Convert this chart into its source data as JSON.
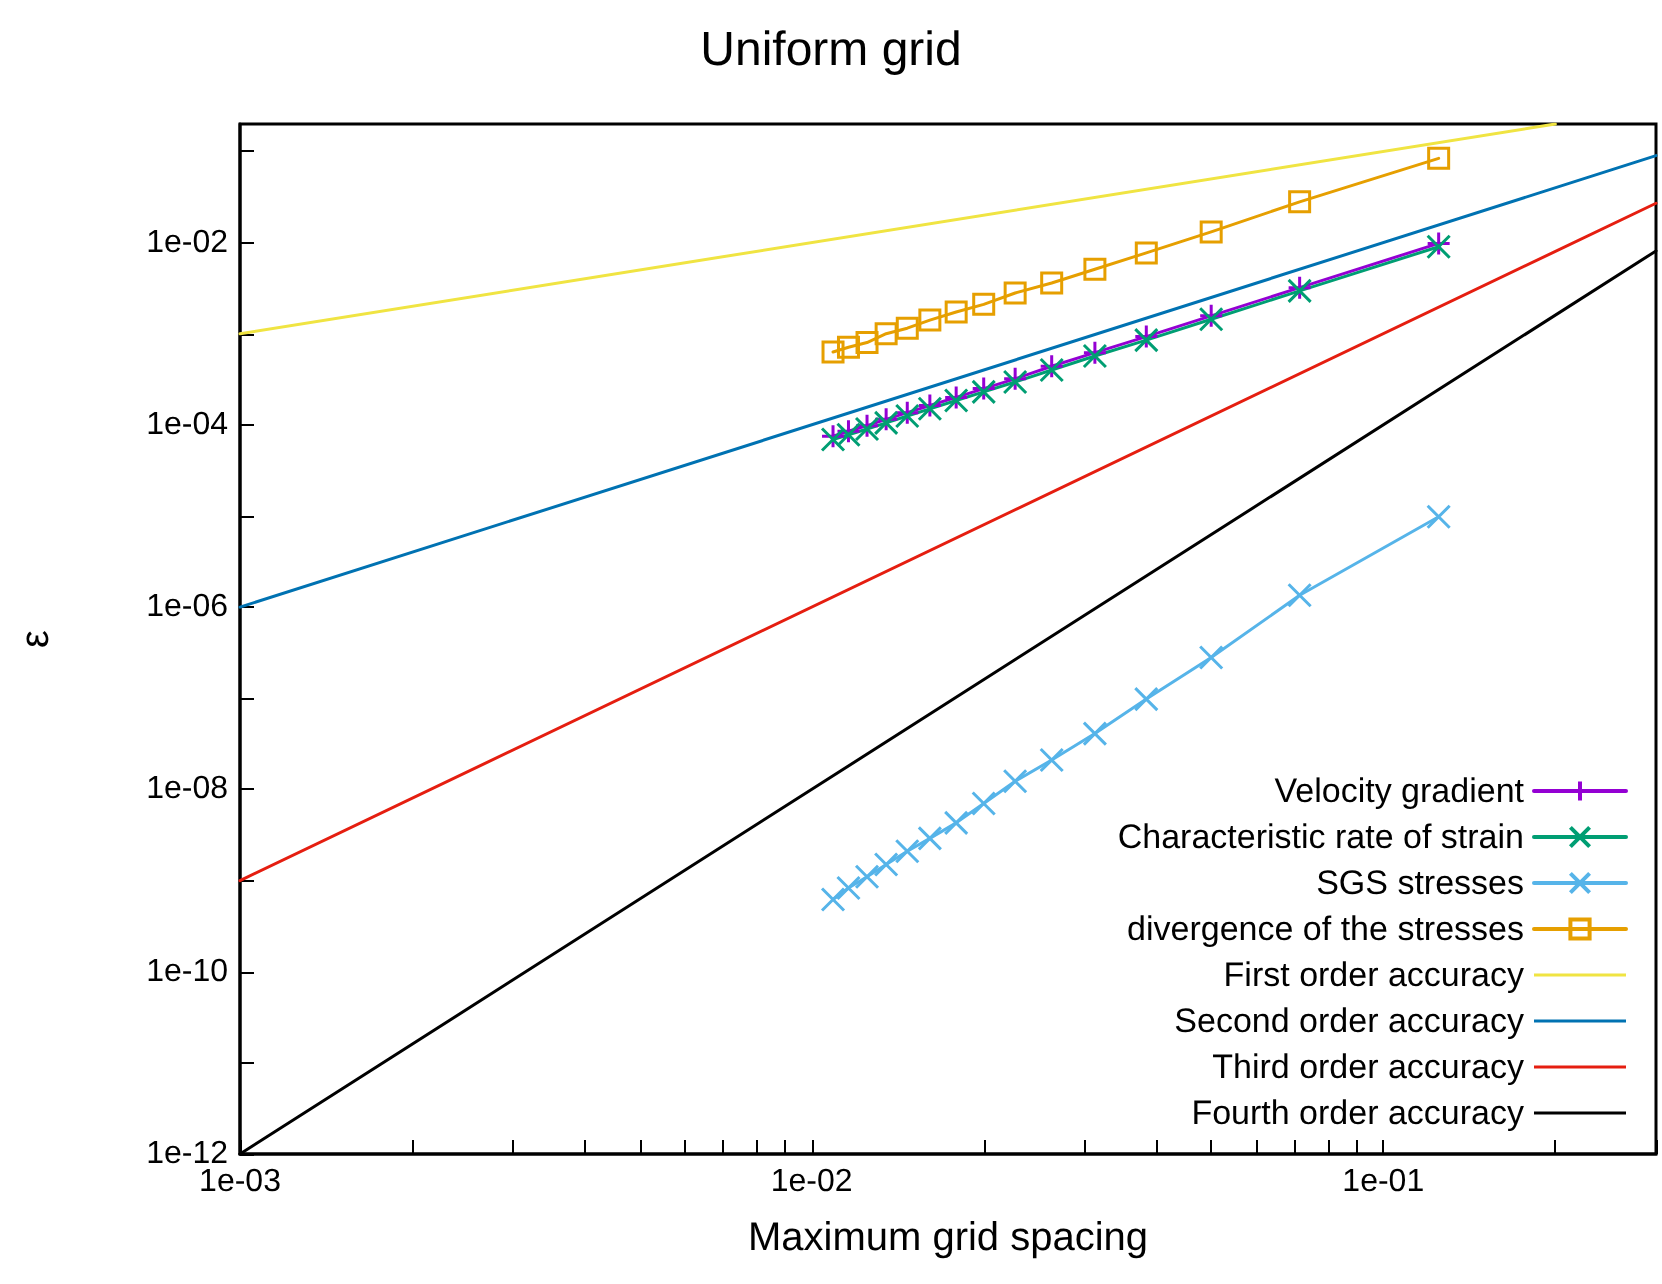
{
  "chart_data": {
    "type": "line",
    "title": "Uniform grid",
    "xlabel": "Maximum grid spacing",
    "ylabel": "ε",
    "log": "xy",
    "grid": false,
    "legend": "bottom right",
    "xlim": [
      0.001,
      0.3
    ],
    "ylim": [
      1e-12,
      0.2
    ],
    "xticks": [
      {
        "value": 0.001,
        "label": "1e-03"
      },
      {
        "value": 0.002,
        "label": null
      },
      {
        "value": 0.003,
        "label": null
      },
      {
        "value": 0.004,
        "label": null
      },
      {
        "value": 0.005,
        "label": null
      },
      {
        "value": 0.006,
        "label": null
      },
      {
        "value": 0.007,
        "label": null
      },
      {
        "value": 0.008,
        "label": null
      },
      {
        "value": 0.009,
        "label": null
      },
      {
        "value": 0.01,
        "label": "1e-02"
      },
      {
        "value": 0.02,
        "label": null
      },
      {
        "value": 0.03,
        "label": null
      },
      {
        "value": 0.04,
        "label": null
      },
      {
        "value": 0.05,
        "label": null
      },
      {
        "value": 0.06,
        "label": null
      },
      {
        "value": 0.07,
        "label": null
      },
      {
        "value": 0.08,
        "label": null
      },
      {
        "value": 0.09,
        "label": null
      },
      {
        "value": 0.1,
        "label": "1e-01"
      },
      {
        "value": 0.2,
        "label": null
      },
      {
        "value": 0.3,
        "label": null
      }
    ],
    "yticks": [
      {
        "value": 1e-12,
        "label": "1e-12"
      },
      {
        "value": 1e-11,
        "label": null
      },
      {
        "value": 1e-10,
        "label": "1e-10"
      },
      {
        "value": 1e-09,
        "label": null
      },
      {
        "value": 1e-08,
        "label": "1e-08"
      },
      {
        "value": 1e-07,
        "label": null
      },
      {
        "value": 1e-06,
        "label": "1e-06"
      },
      {
        "value": 1e-05,
        "label": null
      },
      {
        "value": 0.0001,
        "label": "1e-04"
      },
      {
        "value": 0.001,
        "label": null
      },
      {
        "value": 0.01,
        "label": "1e-02"
      },
      {
        "value": 0.1,
        "label": null
      }
    ],
    "series": [
      {
        "name": "Velocity gradient",
        "color": "#9400d3",
        "marker": "plus",
        "x": [
          0.0109,
          0.0116,
          0.0125,
          0.0135,
          0.0147,
          0.0161,
          0.0179,
          0.02,
          0.0227,
          0.0263,
          0.0313,
          0.0385,
          0.05,
          0.0714,
          0.125
        ],
        "values": [
          7.5e-05,
          8.5e-05,
          9.8e-05,
          0.000115,
          0.000136,
          0.000163,
          0.0002,
          0.00025,
          0.00032,
          0.00044,
          0.00062,
          0.00093,
          0.00157,
          0.0032,
          0.0098
        ]
      },
      {
        "name": "Characteristic rate of strain",
        "color": "#009e73",
        "marker": "cross",
        "x": [
          0.0109,
          0.0116,
          0.0125,
          0.0135,
          0.0147,
          0.0161,
          0.0179,
          0.02,
          0.0227,
          0.0263,
          0.0313,
          0.0385,
          0.05,
          0.0714,
          0.125
        ],
        "values": [
          6.9e-05,
          7.8e-05,
          9e-05,
          0.000105,
          0.000125,
          0.00015,
          0.000185,
          0.00023,
          0.000295,
          0.0004,
          0.00057,
          0.00085,
          0.00144,
          0.00295,
          0.009
        ]
      },
      {
        "name": "SGS stresses",
        "color": "#56b4e9",
        "marker": "cross",
        "x": [
          0.0109,
          0.0116,
          0.0125,
          0.0135,
          0.0147,
          0.0161,
          0.0179,
          0.02,
          0.0227,
          0.0263,
          0.0313,
          0.0385,
          0.05,
          0.0714,
          0.125
        ],
        "values": [
          6.2e-10,
          8.3e-10,
          1.1e-09,
          1.5e-09,
          2.1e-09,
          2.9e-09,
          4.3e-09,
          7e-09,
          1.23e-08,
          2.1e-08,
          4.1e-08,
          9.8e-08,
          2.8e-07,
          1.35e-06,
          9.8e-06
        ]
      },
      {
        "name": "divergence of the stresses",
        "color": "#e69f00",
        "marker": "square",
        "x": [
          0.0109,
          0.0116,
          0.0125,
          0.0135,
          0.0147,
          0.0161,
          0.0179,
          0.02,
          0.0227,
          0.0263,
          0.0313,
          0.0385,
          0.05,
          0.0714,
          0.125
        ],
        "values": [
          0.00063,
          0.00071,
          0.0008,
          0.001,
          0.00115,
          0.00141,
          0.00173,
          0.0021,
          0.0028,
          0.0036,
          0.0051,
          0.0077,
          0.0131,
          0.028,
          0.084
        ]
      },
      {
        "name": "First order accuracy",
        "color": "#f0e442",
        "marker": "none",
        "x": [
          0.001,
          0.2
        ],
        "values": [
          0.001,
          0.2
        ]
      },
      {
        "name": "Second order accuracy",
        "color": "#0072b2",
        "marker": "none",
        "x": [
          0.001,
          0.3
        ],
        "values": [
          1e-06,
          0.09
        ]
      },
      {
        "name": "Third order accuracy",
        "color": "#e51e10",
        "marker": "none",
        "x": [
          0.001,
          0.3
        ],
        "values": [
          1e-09,
          0.027
        ]
      },
      {
        "name": "Fourth order accuracy",
        "color": "#000000",
        "marker": "none",
        "x": [
          0.001,
          0.3
        ],
        "values": [
          1e-12,
          0.0081
        ]
      }
    ]
  }
}
